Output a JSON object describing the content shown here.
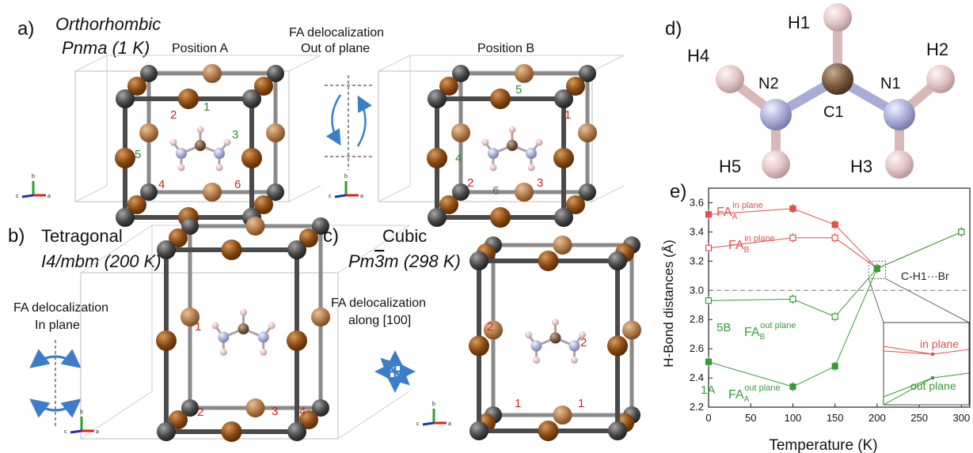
{
  "panel_a": {
    "letter": "a)",
    "line1": "Orthorhombic",
    "line2": "Pnma (1 K)",
    "pos_a": "Position A",
    "pos_b": "Position B",
    "deloc1": "FA delocalization",
    "deloc2": "Out of plane",
    "nums_a": [
      {
        "t": "1",
        "c": "green"
      },
      {
        "t": "2",
        "c": "red"
      },
      {
        "t": "3",
        "c": "green"
      },
      {
        "t": "4",
        "c": "red"
      },
      {
        "t": "5",
        "c": "green"
      },
      {
        "t": "6",
        "c": "red"
      }
    ],
    "nums_b": [
      {
        "t": "5",
        "c": "green"
      },
      {
        "t": "1",
        "c": "red"
      },
      {
        "t": "4",
        "c": "green"
      },
      {
        "t": "2",
        "c": "red"
      },
      {
        "t": "6",
        "c": "green"
      },
      {
        "t": "3",
        "c": "red"
      }
    ]
  },
  "panel_b": {
    "letter": "b)",
    "line1": "Tetragonal",
    "line2": "I4/mbm (200 K)",
    "deloc1": "FA delocalization",
    "deloc2": "In plane",
    "nums": [
      "1",
      "2",
      "3",
      "4"
    ]
  },
  "panel_c": {
    "letter": "c)",
    "line1": "Cubic",
    "line2_pre": "Pm",
    "line2_bar": "3",
    "line2_post": "m (298 K)",
    "deloc1": "FA delocalization",
    "deloc2": "along [100]",
    "nums": [
      "2",
      "2",
      "1",
      "1"
    ]
  },
  "panel_d": {
    "letter": "d)",
    "atoms": [
      "H1",
      "H4",
      "H2",
      "N2",
      "C1",
      "N1",
      "H5",
      "H3"
    ]
  },
  "axes_triad": {
    "a": "a",
    "b": "b",
    "c": "c"
  },
  "chart_data": {
    "type": "scatter",
    "panel": "e)",
    "xlabel": "Temperature (K)",
    "ylabel": "H-Bond distances (Å)",
    "xlim": [
      0,
      310
    ],
    "ylim": [
      2.2,
      3.7
    ],
    "xticks": [
      "0",
      "50",
      "100",
      "150",
      "200",
      "250",
      "300"
    ],
    "yticks": [
      "2.2",
      "2.4",
      "2.6",
      "2.8",
      "3.0",
      "3.2",
      "3.4",
      "3.6"
    ],
    "reference_line": 3.0,
    "annotation": "C-H1···Br",
    "series": [
      {
        "label_main": "FA",
        "label_sub": "A",
        "label_sup": "in plane",
        "color": "#e05050",
        "filled": true,
        "x": [
          0,
          100,
          150,
          200
        ],
        "y": [
          3.52,
          3.56,
          3.45,
          3.15
        ]
      },
      {
        "label_main": "FA",
        "label_sub": "B",
        "label_sup": "in plane",
        "color": "#e05050",
        "filled": false,
        "x": [
          0,
          100,
          150,
          200,
          300
        ],
        "y": [
          3.29,
          3.36,
          3.36,
          3.15,
          3.4
        ]
      },
      {
        "label_pre": "5B",
        "label_main": "FA",
        "label_sub": "B",
        "label_sup": "out plane",
        "color": "#3a9a3a",
        "filled": false,
        "x": [
          0,
          100,
          150,
          200,
          300
        ],
        "y": [
          2.93,
          2.94,
          2.82,
          3.15,
          3.4
        ]
      },
      {
        "label_pre": "1A",
        "label_main": "FA",
        "label_sub": "A",
        "label_sup": "out plane",
        "color": "#3a9a3a",
        "filled": true,
        "x": [
          0,
          100,
          150,
          200
        ],
        "y": [
          2.51,
          2.34,
          2.48,
          3.15
        ]
      }
    ],
    "inset_labels": [
      "in plane",
      "out plane"
    ]
  }
}
